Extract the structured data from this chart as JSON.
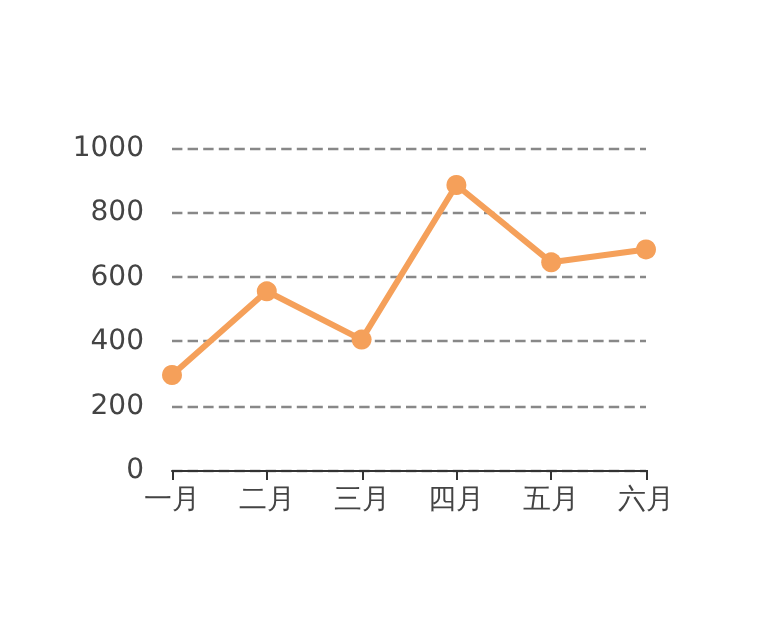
{
  "chart_data": {
    "type": "line",
    "categories": [
      "一月",
      "二月",
      "三月",
      "四月",
      "五月",
      "六月"
    ],
    "series": [
      {
        "color": "#f5a05a",
        "values": [
          295,
          555,
          405,
          885,
          645,
          685
        ]
      }
    ],
    "ylim": [
      0,
      1000
    ],
    "yticks": [
      0,
      200,
      400,
      600,
      800,
      1000
    ],
    "grid": "y",
    "legend": false,
    "marker": "circle",
    "line_style": "solid"
  }
}
